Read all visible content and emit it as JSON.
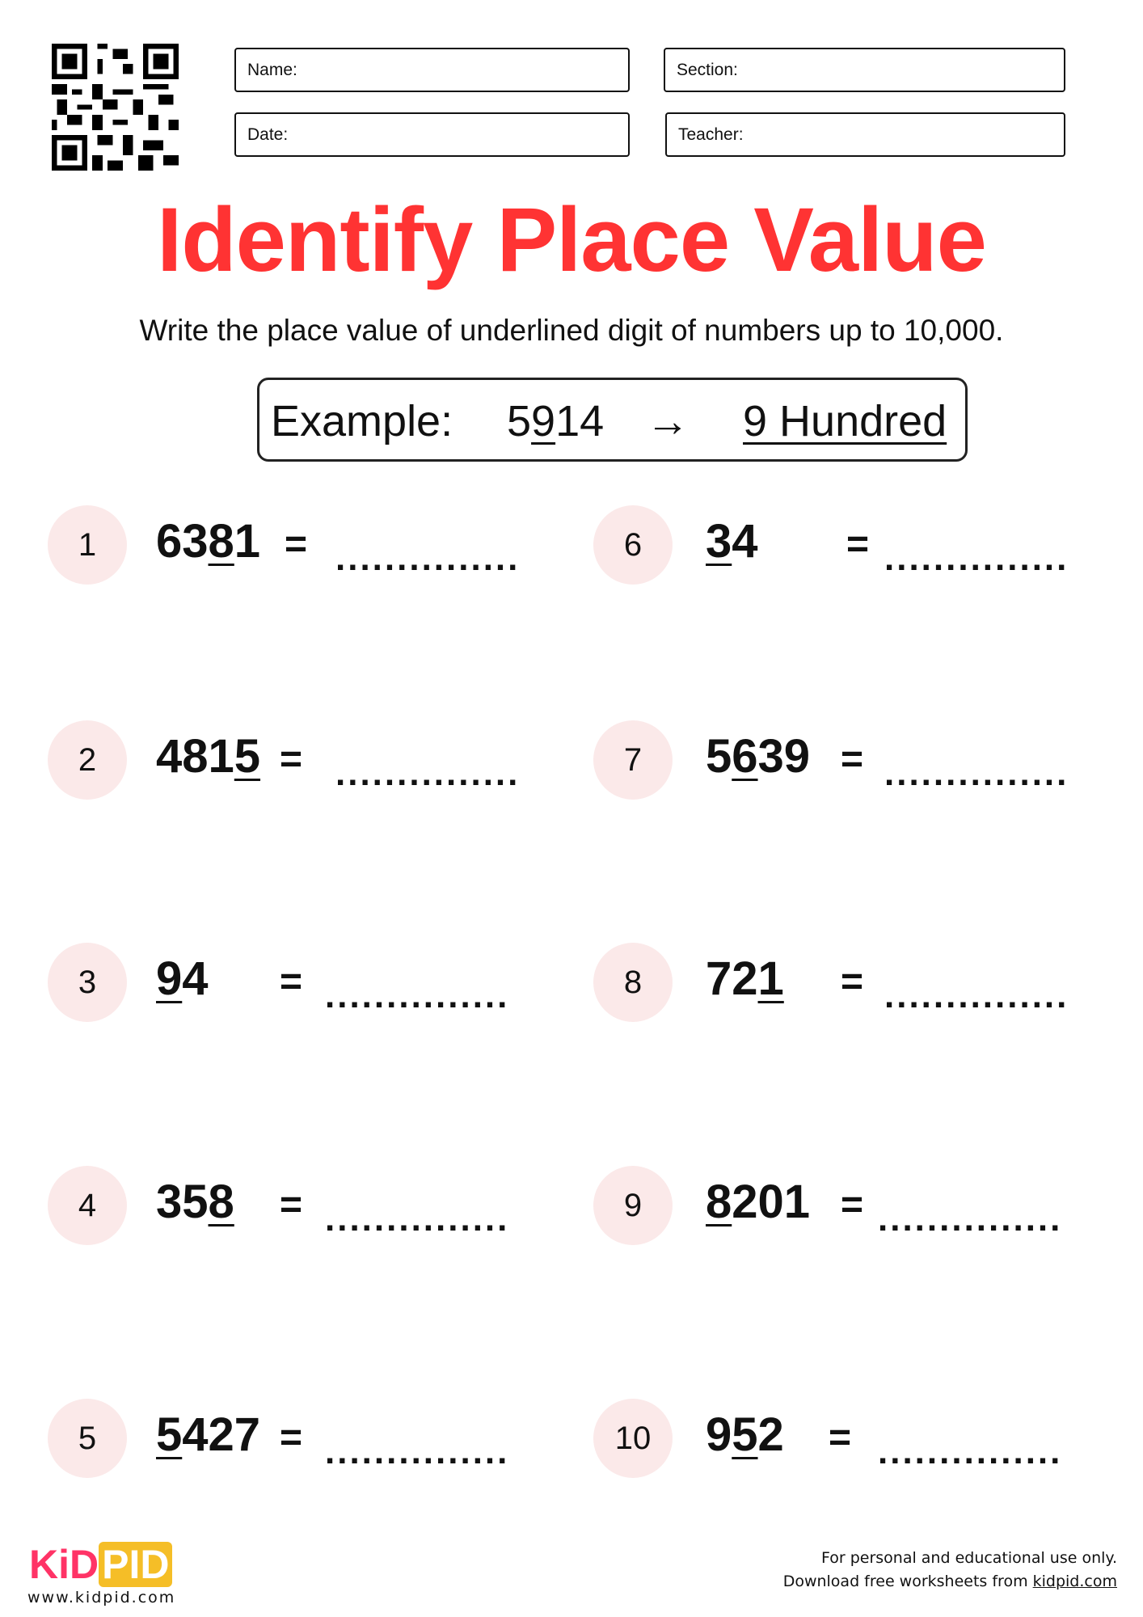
{
  "header": {
    "fields": [
      {
        "label": "Name:"
      },
      {
        "label": "Section:"
      },
      {
        "label": "Date:"
      },
      {
        "label": "Teacher:"
      }
    ]
  },
  "title": "Identify Place Value",
  "subtitle": "Write the place value of underlined digit of numbers up to 10,000.",
  "example": {
    "label": "Example:",
    "number_before": "5",
    "number_underlined": "9",
    "number_after": "14",
    "arrow": "→",
    "answer": "9 Hundred"
  },
  "colors": {
    "title": "#ff3333",
    "circle": "#fbe9e9",
    "logo_pink": "#ff3366",
    "logo_yellow": "#f5be27"
  },
  "questions": [
    {
      "n": "1",
      "before": "63",
      "underlined": "8",
      "after": "1",
      "eq": "=",
      "blank": "..............."
    },
    {
      "n": "2",
      "before": "481",
      "underlined": "5",
      "after": "",
      "eq": "=",
      "blank": "..............."
    },
    {
      "n": "3",
      "before": "",
      "underlined": "9",
      "after": "4",
      "eq": "=",
      "blank": "..............."
    },
    {
      "n": "4",
      "before": "35",
      "underlined": "8",
      "after": "",
      "eq": "=",
      "blank": "..............."
    },
    {
      "n": "5",
      "before": "",
      "underlined": "5",
      "after": "427",
      "eq": "=",
      "blank": "..............."
    },
    {
      "n": "6",
      "before": "",
      "underlined": "3",
      "after": "4",
      "eq": "=",
      "blank": "..............."
    },
    {
      "n": "7",
      "before": "5",
      "underlined": "6",
      "after": "39",
      "eq": "=",
      "blank": "..............."
    },
    {
      "n": "8",
      "before": "72",
      "underlined": "1",
      "after": "",
      "eq": "=",
      "blank": "..............."
    },
    {
      "n": "9",
      "before": "",
      "underlined": "8",
      "after": "201",
      "eq": "=",
      "blank": "..............."
    },
    {
      "n": "10",
      "before": "9",
      "underlined": "5",
      "after": "2",
      "eq": "=",
      "blank": "..............."
    }
  ],
  "footer": {
    "logo_kid": "KiD",
    "logo_pid": "PID",
    "website": "www.kidpid.com",
    "line1": "For personal and educational use only.",
    "line2_prefix": "Download free worksheets from ",
    "line2_link": "kidpid.com"
  }
}
